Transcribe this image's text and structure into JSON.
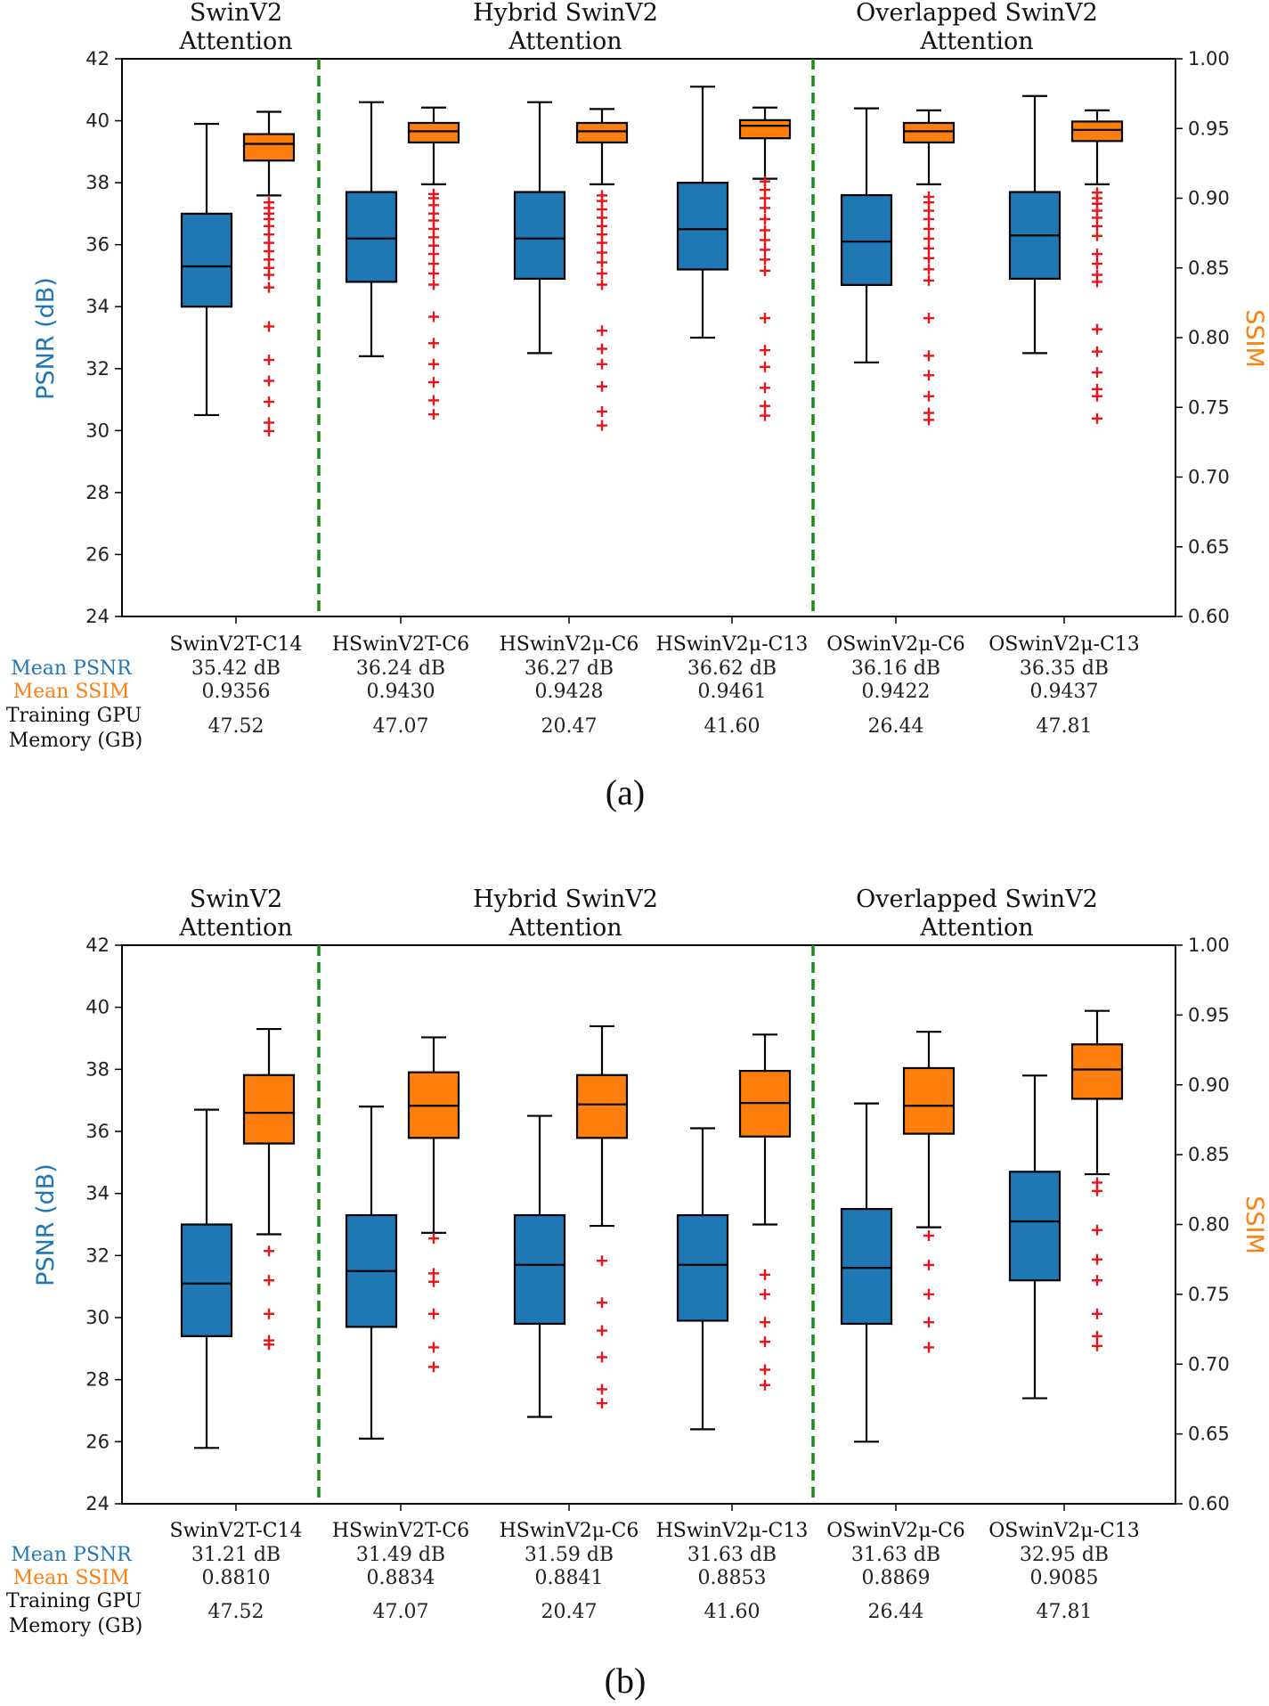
{
  "colors": {
    "psnr": "#1f77b4",
    "ssim": "#ff7f0e",
    "outlier": "#e8141a",
    "divider": "#1a8a1a"
  },
  "row_labels": {
    "mean_psnr": "Mean PSNR",
    "mean_ssim": "Mean SSIM",
    "gpu_line1": "Training GPU",
    "gpu_line2": "Memory (GB)"
  },
  "chart_data": [
    {
      "type": "box",
      "caption": "(a)",
      "ylabel_left": "PSNR (dB)",
      "ylabel_right": "SSIM",
      "ylim_left": [
        24,
        42
      ],
      "ylim_right": [
        0.6,
        1.0
      ],
      "yticks_left": [
        "24",
        "26",
        "28",
        "30",
        "32",
        "34",
        "36",
        "38",
        "40",
        "42"
      ],
      "yticks_right": [
        "0.60",
        "0.65",
        "0.70",
        "0.75",
        "0.80",
        "0.85",
        "0.90",
        "0.95",
        "1.00"
      ],
      "groups": [
        {
          "line1": "SwinV2",
          "line2": "Attention"
        },
        {
          "line1": "Hybrid SwinV2",
          "line2": "Attention"
        },
        {
          "line1": "Overlapped SwinV2",
          "line2": "Attention"
        }
      ],
      "categories": [
        "SwinV2T-C14",
        "HSwinV2T-C6",
        "HSwinV2μ-C6",
        "HSwinV2μ-C13",
        "OSwinV2μ-C6",
        "OSwinV2μ-C13"
      ],
      "mean_psnr": [
        "35.42 dB",
        "36.24 dB",
        "36.27 dB",
        "36.62 dB",
        "36.16 dB",
        "36.35 dB"
      ],
      "mean_ssim": [
        "0.9356",
        "0.9430",
        "0.9428",
        "0.9461",
        "0.9422",
        "0.9437"
      ],
      "gpu_memory": [
        "47.52",
        "47.07",
        "20.47",
        "41.60",
        "26.44",
        "47.81"
      ],
      "psnr_boxes": [
        {
          "whislo": 30.5,
          "q1": 34.0,
          "med": 35.3,
          "q3": 37.0,
          "whishi": 39.9
        },
        {
          "whislo": 32.4,
          "q1": 34.8,
          "med": 36.2,
          "q3": 37.7,
          "whishi": 40.6
        },
        {
          "whislo": 32.5,
          "q1": 34.9,
          "med": 36.2,
          "q3": 37.7,
          "whishi": 40.6
        },
        {
          "whislo": 33.0,
          "q1": 35.2,
          "med": 36.5,
          "q3": 38.0,
          "whishi": 41.1
        },
        {
          "whislo": 32.2,
          "q1": 34.7,
          "med": 36.1,
          "q3": 37.6,
          "whishi": 40.4
        },
        {
          "whislo": 32.5,
          "q1": 34.9,
          "med": 36.3,
          "q3": 37.7,
          "whishi": 40.8
        }
      ],
      "ssim_boxes": [
        {
          "whislo": 0.902,
          "q1": 0.927,
          "med": 0.939,
          "q3": 0.946,
          "whishi": 0.962,
          "fliers": [
            0.897,
            0.893,
            0.889,
            0.885,
            0.88,
            0.874,
            0.868,
            0.862,
            0.856,
            0.85,
            0.845,
            0.836,
            0.808,
            0.784,
            0.769,
            0.754,
            0.739,
            0.733
          ]
        },
        {
          "whislo": 0.91,
          "q1": 0.94,
          "med": 0.948,
          "q3": 0.954,
          "whishi": 0.965,
          "fliers": [
            0.903,
            0.9,
            0.895,
            0.889,
            0.884,
            0.878,
            0.872,
            0.866,
            0.86,
            0.853,
            0.846,
            0.838,
            0.815,
            0.796,
            0.781,
            0.768,
            0.755,
            0.745
          ]
        },
        {
          "whislo": 0.91,
          "q1": 0.94,
          "med": 0.948,
          "q3": 0.954,
          "whishi": 0.964,
          "fliers": [
            0.902,
            0.898,
            0.892,
            0.886,
            0.88,
            0.874,
            0.868,
            0.861,
            0.854,
            0.846,
            0.838,
            0.805,
            0.792,
            0.781,
            0.765,
            0.747,
            0.737
          ]
        },
        {
          "whislo": 0.914,
          "q1": 0.943,
          "med": 0.952,
          "q3": 0.956,
          "whishi": 0.965,
          "fliers": [
            0.912,
            0.906,
            0.9,
            0.893,
            0.885,
            0.877,
            0.87,
            0.863,
            0.856,
            0.848,
            0.814,
            0.791,
            0.779,
            0.764,
            0.751,
            0.744
          ]
        },
        {
          "whislo": 0.91,
          "q1": 0.94,
          "med": 0.948,
          "q3": 0.954,
          "whishi": 0.963,
          "fliers": [
            0.901,
            0.897,
            0.891,
            0.885,
            0.878,
            0.871,
            0.864,
            0.857,
            0.849,
            0.841,
            0.814,
            0.787,
            0.773,
            0.758,
            0.746,
            0.741
          ]
        },
        {
          "whislo": 0.91,
          "q1": 0.941,
          "med": 0.949,
          "q3": 0.955,
          "whishi": 0.963,
          "fliers": [
            0.904,
            0.9,
            0.896,
            0.891,
            0.886,
            0.88,
            0.873,
            0.86,
            0.853,
            0.845,
            0.84,
            0.806,
            0.79,
            0.775,
            0.763,
            0.758,
            0.742
          ]
        }
      ]
    },
    {
      "type": "box",
      "caption": "(b)",
      "ylabel_left": "PSNR (dB)",
      "ylabel_right": "SSIM",
      "ylim_left": [
        24,
        42
      ],
      "ylim_right": [
        0.6,
        1.0
      ],
      "yticks_left": [
        "24",
        "26",
        "28",
        "30",
        "32",
        "34",
        "36",
        "38",
        "40",
        "42"
      ],
      "yticks_right": [
        "0.60",
        "0.65",
        "0.70",
        "0.75",
        "0.80",
        "0.85",
        "0.90",
        "0.95",
        "1.00"
      ],
      "groups": [
        {
          "line1": "SwinV2",
          "line2": "Attention"
        },
        {
          "line1": "Hybrid SwinV2",
          "line2": "Attention"
        },
        {
          "line1": "Overlapped SwinV2",
          "line2": "Attention"
        }
      ],
      "categories": [
        "SwinV2T-C14",
        "HSwinV2T-C6",
        "HSwinV2μ-C6",
        "HSwinV2μ-C13",
        "OSwinV2μ-C6",
        "OSwinV2μ-C13"
      ],
      "mean_psnr": [
        "31.21 dB",
        "31.49 dB",
        "31.59 dB",
        "31.63 dB",
        "31.63 dB",
        "32.95 dB"
      ],
      "mean_ssim": [
        "0.8810",
        "0.8834",
        "0.8841",
        "0.8853",
        "0.8869",
        "0.9085"
      ],
      "gpu_memory": [
        "47.52",
        "47.07",
        "20.47",
        "41.60",
        "26.44",
        "47.81"
      ],
      "psnr_boxes": [
        {
          "whislo": 25.8,
          "q1": 29.4,
          "med": 31.1,
          "q3": 33.0,
          "whishi": 36.7
        },
        {
          "whislo": 26.1,
          "q1": 29.7,
          "med": 31.5,
          "q3": 33.3,
          "whishi": 36.8
        },
        {
          "whislo": 26.8,
          "q1": 29.8,
          "med": 31.7,
          "q3": 33.3,
          "whishi": 36.5
        },
        {
          "whislo": 26.4,
          "q1": 29.9,
          "med": 31.7,
          "q3": 33.3,
          "whishi": 36.1
        },
        {
          "whislo": 26.0,
          "q1": 29.8,
          "med": 31.6,
          "q3": 33.5,
          "whishi": 36.9
        },
        {
          "whislo": 27.4,
          "q1": 31.2,
          "med": 33.1,
          "q3": 34.7,
          "whishi": 37.8
        }
      ],
      "ssim_boxes": [
        {
          "whislo": 0.793,
          "q1": 0.858,
          "med": 0.88,
          "q3": 0.907,
          "whishi": 0.94,
          "fliers": [
            0.781,
            0.76,
            0.736,
            0.717,
            0.714
          ]
        },
        {
          "whislo": 0.794,
          "q1": 0.862,
          "med": 0.885,
          "q3": 0.909,
          "whishi": 0.934,
          "fliers": [
            0.79,
            0.765,
            0.759,
            0.736,
            0.712,
            0.698
          ]
        },
        {
          "whislo": 0.799,
          "q1": 0.862,
          "med": 0.886,
          "q3": 0.907,
          "whishi": 0.942,
          "fliers": [
            0.774,
            0.744,
            0.724,
            0.705,
            0.682,
            0.672
          ]
        },
        {
          "whislo": 0.8,
          "q1": 0.863,
          "med": 0.887,
          "q3": 0.91,
          "whishi": 0.936,
          "fliers": [
            0.764,
            0.75,
            0.73,
            0.716,
            0.696,
            0.685
          ]
        },
        {
          "whislo": 0.798,
          "q1": 0.865,
          "med": 0.885,
          "q3": 0.912,
          "whishi": 0.938,
          "fliers": [
            0.792,
            0.771,
            0.75,
            0.73,
            0.712
          ]
        },
        {
          "whislo": 0.836,
          "q1": 0.89,
          "med": 0.911,
          "q3": 0.929,
          "whishi": 0.953,
          "fliers": [
            0.83,
            0.824,
            0.796,
            0.775,
            0.76,
            0.736,
            0.72,
            0.713
          ]
        }
      ]
    }
  ]
}
